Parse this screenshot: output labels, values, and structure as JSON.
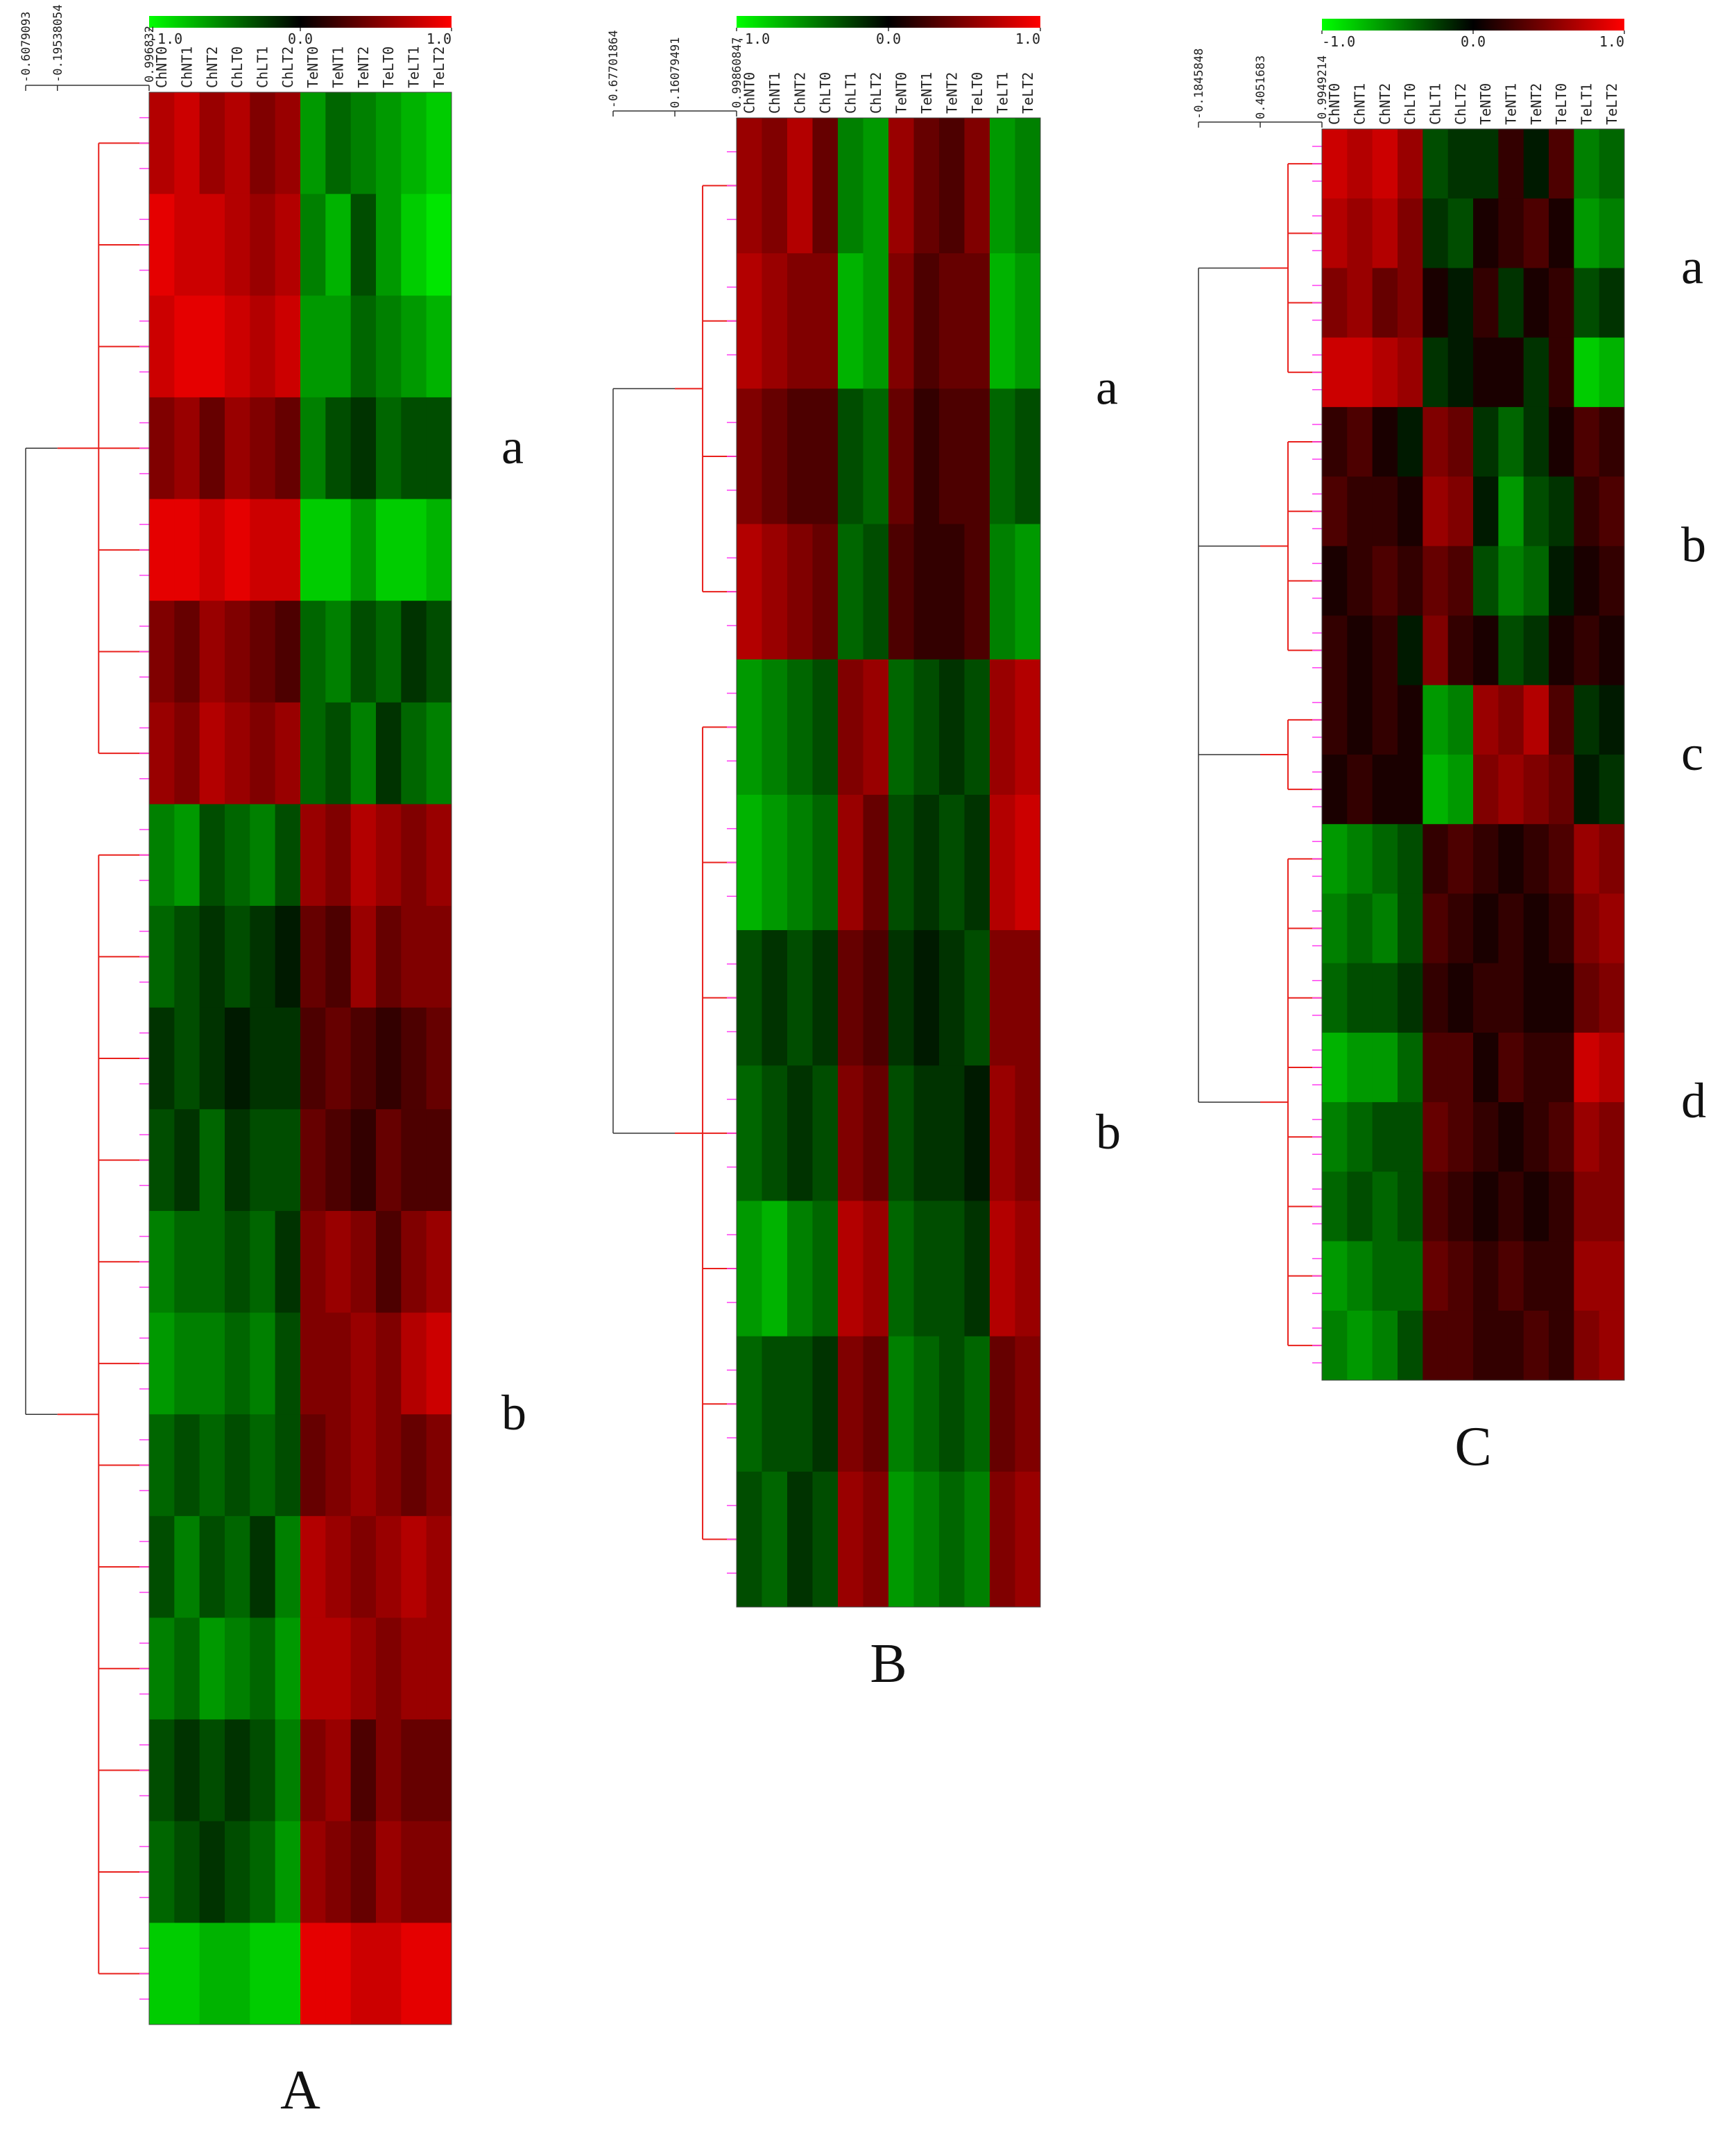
{
  "chart_data": [
    {
      "type": "heatmap",
      "label": "A",
      "columns": [
        "ChNT0",
        "ChNT1",
        "ChNT2",
        "ChLT0",
        "ChLT1",
        "ChLT2",
        "TeNT0",
        "TeNT1",
        "TeNT2",
        "TeLT0",
        "TeLT1",
        "TeLT2"
      ],
      "colormap": [
        "#00ff00",
        "#000000",
        "#ff0000"
      ],
      "clim": [
        -1,
        1
      ],
      "color_ticks": [
        {
          "value": -1,
          "label": "-1.0"
        },
        {
          "value": 0,
          "label": "0.0"
        },
        {
          "value": 1,
          "label": "1.0"
        }
      ],
      "dendro_lim": [
        -0.6079093,
        0.996832
      ],
      "dendro_ticks": [
        -0.6079093,
        -0.19538054,
        0.996832
      ],
      "clusters": [
        {
          "label": "a",
          "rows": [
            [
              0.7,
              0.8,
              0.6,
              0.7,
              0.5,
              0.6,
              -0.6,
              -0.4,
              -0.5,
              -0.6,
              -0.7,
              -0.8
            ],
            [
              0.9,
              0.8,
              0.8,
              0.7,
              0.6,
              0.7,
              -0.5,
              -0.7,
              -0.3,
              -0.6,
              -0.8,
              -0.9
            ],
            [
              0.8,
              0.9,
              0.9,
              0.8,
              0.7,
              0.8,
              -0.6,
              -0.6,
              -0.4,
              -0.5,
              -0.6,
              -0.7
            ],
            [
              0.5,
              0.6,
              0.4,
              0.6,
              0.5,
              0.4,
              -0.5,
              -0.3,
              -0.2,
              -0.4,
              -0.3,
              -0.3
            ],
            [
              0.9,
              0.9,
              0.8,
              0.9,
              0.8,
              0.8,
              -0.8,
              -0.8,
              -0.6,
              -0.8,
              -0.8,
              -0.7
            ],
            [
              0.5,
              0.4,
              0.6,
              0.5,
              0.4,
              0.3,
              -0.4,
              -0.5,
              -0.3,
              -0.4,
              -0.2,
              -0.3
            ],
            [
              0.6,
              0.5,
              0.7,
              0.6,
              0.5,
              0.6,
              -0.4,
              -0.3,
              -0.5,
              -0.2,
              -0.4,
              -0.5
            ]
          ]
        },
        {
          "label": "b",
          "rows": [
            [
              -0.5,
              -0.6,
              -0.3,
              -0.4,
              -0.5,
              -0.3,
              0.6,
              0.5,
              0.7,
              0.6,
              0.5,
              0.6
            ],
            [
              -0.4,
              -0.3,
              -0.2,
              -0.3,
              -0.2,
              -0.1,
              0.4,
              0.3,
              0.6,
              0.4,
              0.5,
              0.5
            ],
            [
              -0.2,
              -0.3,
              -0.2,
              -0.1,
              -0.2,
              -0.2,
              0.3,
              0.4,
              0.3,
              0.2,
              0.3,
              0.4
            ],
            [
              -0.3,
              -0.2,
              -0.4,
              -0.2,
              -0.3,
              -0.3,
              0.4,
              0.3,
              0.2,
              0.4,
              0.3,
              0.3
            ],
            [
              -0.5,
              -0.4,
              -0.4,
              -0.3,
              -0.4,
              -0.2,
              0.5,
              0.6,
              0.5,
              0.3,
              0.5,
              0.6
            ],
            [
              -0.6,
              -0.5,
              -0.5,
              -0.4,
              -0.5,
              -0.3,
              0.5,
              0.5,
              0.6,
              0.5,
              0.7,
              0.8
            ],
            [
              -0.4,
              -0.3,
              -0.4,
              -0.3,
              -0.4,
              -0.3,
              0.4,
              0.5,
              0.6,
              0.5,
              0.4,
              0.5
            ],
            [
              -0.3,
              -0.5,
              -0.3,
              -0.4,
              -0.2,
              -0.5,
              0.7,
              0.6,
              0.5,
              0.6,
              0.7,
              0.6
            ],
            [
              -0.5,
              -0.4,
              -0.6,
              -0.5,
              -0.4,
              -0.6,
              0.7,
              0.7,
              0.6,
              0.5,
              0.6,
              0.6
            ],
            [
              -0.3,
              -0.2,
              -0.3,
              -0.2,
              -0.3,
              -0.5,
              0.5,
              0.6,
              0.3,
              0.5,
              0.4,
              0.4
            ],
            [
              -0.4,
              -0.3,
              -0.2,
              -0.3,
              -0.4,
              -0.6,
              0.6,
              0.5,
              0.4,
              0.6,
              0.5,
              0.5
            ],
            [
              -0.8,
              -0.8,
              -0.7,
              -0.7,
              -0.8,
              -0.8,
              0.9,
              0.9,
              0.8,
              0.8,
              0.9,
              0.9
            ]
          ]
        }
      ]
    },
    {
      "type": "heatmap",
      "label": "B",
      "columns": [
        "ChNT0",
        "ChNT1",
        "ChNT2",
        "ChLT0",
        "ChLT1",
        "ChLT2",
        "TeNT0",
        "TeNT1",
        "TeNT2",
        "TeLT0",
        "TeLT1",
        "TeLT2"
      ],
      "colormap": [
        "#00ff00",
        "#000000",
        "#ff0000"
      ],
      "clim": [
        -1,
        1
      ],
      "color_ticks": [
        {
          "value": -1,
          "label": "-1.0"
        },
        {
          "value": 0,
          "label": "0.0"
        },
        {
          "value": 1,
          "label": "1.0"
        }
      ],
      "dendro_lim": [
        -0.67701864,
        0.99860847
      ],
      "dendro_ticks": [
        -0.67701864,
        0.16079491,
        0.99860847
      ],
      "clusters": [
        {
          "label": "a",
          "rows": [
            [
              0.6,
              0.5,
              0.7,
              0.4,
              -0.5,
              -0.6,
              0.6,
              0.4,
              0.3,
              0.5,
              -0.6,
              -0.5
            ],
            [
              0.7,
              0.6,
              0.5,
              0.5,
              -0.7,
              -0.6,
              0.5,
              0.3,
              0.4,
              0.4,
              -0.7,
              -0.6
            ],
            [
              0.5,
              0.4,
              0.3,
              0.3,
              -0.3,
              -0.4,
              0.4,
              0.2,
              0.3,
              0.3,
              -0.4,
              -0.3
            ],
            [
              0.7,
              0.6,
              0.5,
              0.4,
              -0.4,
              -0.3,
              0.3,
              0.2,
              0.2,
              0.3,
              -0.5,
              -0.6
            ]
          ]
        },
        {
          "label": "b",
          "rows": [
            [
              -0.6,
              -0.5,
              -0.4,
              -0.3,
              0.5,
              0.6,
              -0.4,
              -0.3,
              -0.2,
              -0.3,
              0.6,
              0.7
            ],
            [
              -0.7,
              -0.6,
              -0.5,
              -0.4,
              0.6,
              0.4,
              -0.3,
              -0.2,
              -0.3,
              -0.2,
              0.7,
              0.8
            ],
            [
              -0.3,
              -0.2,
              -0.3,
              -0.2,
              0.4,
              0.3,
              -0.2,
              -0.1,
              -0.2,
              -0.3,
              0.5,
              0.5
            ],
            [
              -0.4,
              -0.3,
              -0.2,
              -0.3,
              0.5,
              0.4,
              -0.3,
              -0.2,
              -0.2,
              -0.1,
              0.6,
              0.5
            ],
            [
              -0.6,
              -0.7,
              -0.5,
              -0.4,
              0.7,
              0.6,
              -0.4,
              -0.3,
              -0.3,
              -0.2,
              0.7,
              0.6
            ],
            [
              -0.4,
              -0.3,
              -0.3,
              -0.2,
              0.5,
              0.4,
              -0.5,
              -0.4,
              -0.3,
              -0.4,
              0.4,
              0.5
            ],
            [
              -0.3,
              -0.4,
              -0.2,
              -0.3,
              0.6,
              0.5,
              -0.6,
              -0.5,
              -0.4,
              -0.5,
              0.5,
              0.6
            ]
          ]
        }
      ]
    },
    {
      "type": "heatmap",
      "label": "C",
      "columns": [
        "ChNT0",
        "ChNT1",
        "ChNT2",
        "ChLT0",
        "ChLT1",
        "ChLT2",
        "TeNT0",
        "TeNT1",
        "TeNT2",
        "TeLT0",
        "TeLT1",
        "TeLT2"
      ],
      "colormap": [
        "#00ff00",
        "#000000",
        "#ff0000"
      ],
      "clim": [
        -1,
        1
      ],
      "color_ticks": [
        {
          "value": -1,
          "label": "-1.0"
        },
        {
          "value": 0,
          "label": "0.0"
        },
        {
          "value": 1,
          "label": "1.0"
        }
      ],
      "dendro_lim": [
        -0.1845848,
        0.9949214
      ],
      "dendro_ticks": [
        -0.1845848,
        0.4051683,
        0.9949214
      ],
      "clusters": [
        {
          "label": "a",
          "rows": [
            [
              0.8,
              0.7,
              0.8,
              0.6,
              -0.3,
              -0.2,
              -0.2,
              0.2,
              -0.1,
              0.3,
              -0.5,
              -0.4
            ],
            [
              0.7,
              0.6,
              0.7,
              0.5,
              -0.2,
              -0.3,
              0.1,
              0.2,
              0.3,
              0.1,
              -0.6,
              -0.5
            ],
            [
              0.5,
              0.6,
              0.4,
              0.5,
              0.1,
              -0.1,
              0.2,
              -0.2,
              0.1,
              0.2,
              -0.3,
              -0.2
            ],
            [
              0.8,
              0.8,
              0.7,
              0.6,
              -0.2,
              -0.1,
              0.1,
              0.1,
              -0.2,
              0.2,
              -0.8,
              -0.7
            ]
          ]
        },
        {
          "label": "b",
          "rows": [
            [
              0.2,
              0.3,
              0.1,
              -0.1,
              0.5,
              0.4,
              -0.2,
              -0.4,
              -0.2,
              0.1,
              0.3,
              0.2
            ],
            [
              0.3,
              0.2,
              0.2,
              0.1,
              0.6,
              0.5,
              -0.1,
              -0.6,
              -0.3,
              -0.2,
              0.2,
              0.3
            ],
            [
              0.1,
              0.2,
              0.3,
              0.2,
              0.4,
              0.3,
              -0.3,
              -0.5,
              -0.4,
              -0.1,
              0.1,
              0.2
            ],
            [
              0.2,
              0.1,
              0.2,
              -0.1,
              0.5,
              0.2,
              0.1,
              -0.3,
              -0.2,
              0.1,
              0.2,
              0.1
            ]
          ]
        },
        {
          "label": "c",
          "rows": [
            [
              0.2,
              0.1,
              0.2,
              0.1,
              -0.6,
              -0.5,
              0.6,
              0.5,
              0.7,
              0.3,
              -0.2,
              -0.1
            ],
            [
              0.1,
              0.2,
              0.1,
              0.1,
              -0.7,
              -0.6,
              0.5,
              0.6,
              0.5,
              0.4,
              -0.1,
              -0.2
            ]
          ]
        },
        {
          "label": "d",
          "rows": [
            [
              -0.6,
              -0.5,
              -0.4,
              -0.3,
              0.2,
              0.3,
              0.2,
              0.1,
              0.2,
              0.3,
              0.6,
              0.5
            ],
            [
              -0.5,
              -0.4,
              -0.5,
              -0.3,
              0.3,
              0.2,
              0.1,
              0.2,
              0.1,
              0.2,
              0.5,
              0.6
            ],
            [
              -0.4,
              -0.3,
              -0.3,
              -0.2,
              0.2,
              0.1,
              0.2,
              0.2,
              0.1,
              0.1,
              0.4,
              0.5
            ],
            [
              -0.7,
              -0.6,
              -0.6,
              -0.4,
              0.3,
              0.3,
              0.1,
              0.3,
              0.2,
              0.2,
              0.8,
              0.7
            ],
            [
              -0.5,
              -0.4,
              -0.3,
              -0.3,
              0.4,
              0.3,
              0.2,
              0.1,
              0.2,
              0.3,
              0.6,
              0.5
            ],
            [
              -0.4,
              -0.3,
              -0.4,
              -0.3,
              0.3,
              0.2,
              0.1,
              0.2,
              0.1,
              0.2,
              0.5,
              0.5
            ],
            [
              -0.6,
              -0.5,
              -0.4,
              -0.4,
              0.4,
              0.3,
              0.2,
              0.3,
              0.2,
              0.2,
              0.6,
              0.6
            ],
            [
              -0.5,
              -0.6,
              -0.5,
              -0.3,
              0.3,
              0.3,
              0.2,
              0.2,
              0.3,
              0.2,
              0.5,
              0.6
            ]
          ]
        }
      ]
    }
  ]
}
